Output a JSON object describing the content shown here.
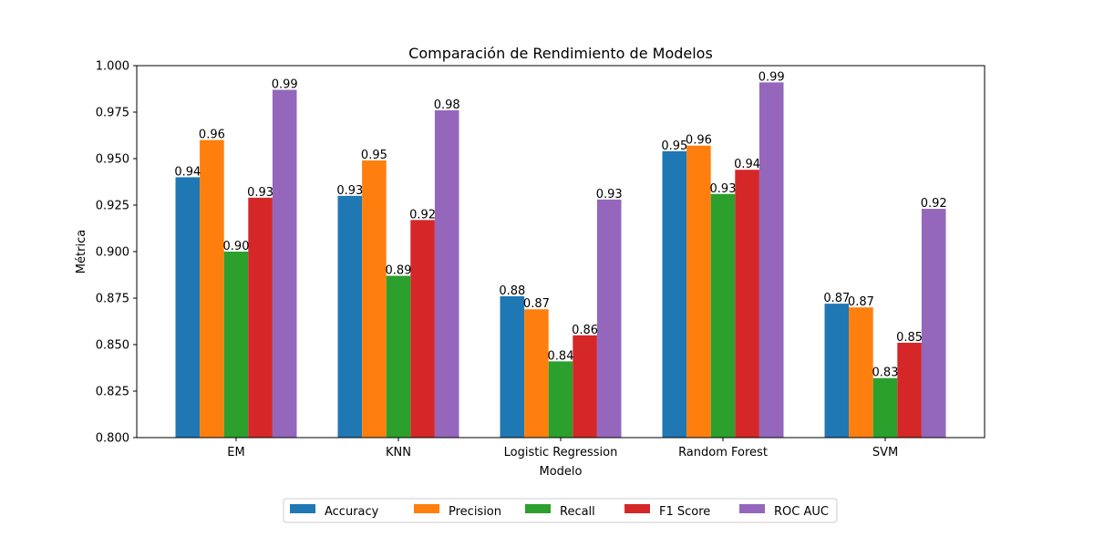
{
  "chart_data": {
    "type": "bar",
    "title": "Comparación de Rendimiento de Modelos",
    "xlabel": "Modelo",
    "ylabel": "Métrica",
    "ylim": [
      0.8,
      1.0
    ],
    "yticks": [
      "0.800",
      "0.825",
      "0.850",
      "0.875",
      "0.900",
      "0.925",
      "0.950",
      "0.975",
      "1.000"
    ],
    "categories": [
      "EM",
      "KNN",
      "Logistic Regression",
      "Random Forest",
      "SVM"
    ],
    "series": [
      {
        "name": "Accuracy",
        "color": "#1f77b4",
        "values": [
          0.94,
          0.93,
          0.876,
          0.954,
          0.872
        ],
        "labels": [
          "0.94",
          "0.93",
          "0.88",
          "0.95",
          "0.87"
        ]
      },
      {
        "name": "Precision",
        "color": "#ff7f0e",
        "values": [
          0.96,
          0.949,
          0.869,
          0.957,
          0.87
        ],
        "labels": [
          "0.96",
          "0.95",
          "0.87",
          "0.96",
          "0.87"
        ]
      },
      {
        "name": "Recall",
        "color": "#2ca02c",
        "values": [
          0.9,
          0.887,
          0.841,
          0.931,
          0.832
        ],
        "labels": [
          "0.90",
          "0.89",
          "0.84",
          "0.93",
          "0.83"
        ]
      },
      {
        "name": "F1 Score",
        "color": "#d62728",
        "values": [
          0.929,
          0.917,
          0.855,
          0.944,
          0.851
        ],
        "labels": [
          "0.93",
          "0.92",
          "0.86",
          "0.94",
          "0.85"
        ]
      },
      {
        "name": "ROC AUC",
        "color": "#9467bd",
        "values": [
          0.987,
          0.976,
          0.928,
          0.991,
          0.923
        ],
        "labels": [
          "0.99",
          "0.98",
          "0.93",
          "0.99",
          "0.92"
        ]
      }
    ],
    "legend_placement": "bottom-center",
    "grid": false
  }
}
